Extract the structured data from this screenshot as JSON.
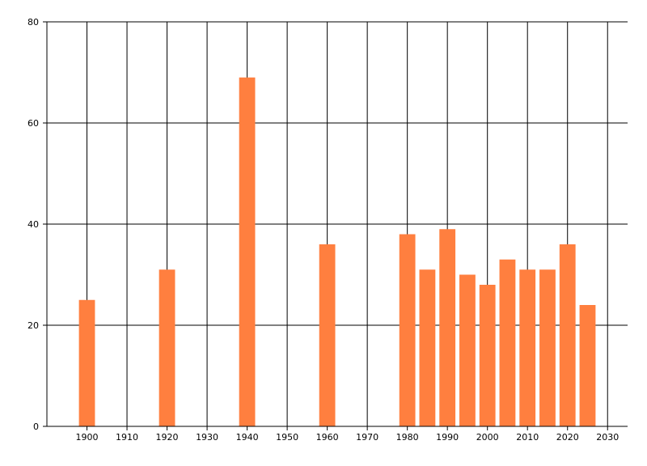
{
  "chart_data": {
    "type": "bar",
    "title": "",
    "xlabel": "",
    "ylabel": "",
    "x": [
      1900,
      1920,
      1940,
      1960,
      1980,
      1985,
      1990,
      1995,
      2000,
      2005,
      2010,
      2015,
      2020,
      2025
    ],
    "series": [
      {
        "values": [
          25,
          31,
          69,
          36,
          38,
          31,
          39,
          30,
          28,
          33,
          31,
          31,
          36,
          24
        ]
      }
    ],
    "xlim": [
      1890,
      2035
    ],
    "ylim": [
      0,
      80
    ],
    "bar_width_years": 4,
    "x_ticks": [
      "1900",
      "1910",
      "1920",
      "1930",
      "1940",
      "1950",
      "1960",
      "1970",
      "1980",
      "1990",
      "2000",
      "2010",
      "2020",
      "2030"
    ],
    "y_ticks": [
      "0",
      "20",
      "40",
      "60",
      "80"
    ],
    "grid": true,
    "legend": "none",
    "colors": {
      "bar": "#ff7f3f",
      "grid": "#000000",
      "axis": "#000000"
    }
  }
}
